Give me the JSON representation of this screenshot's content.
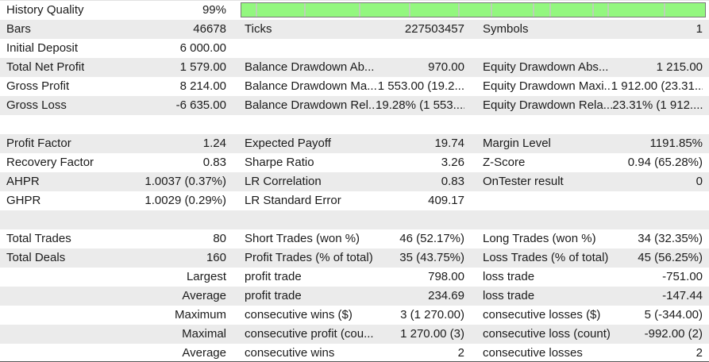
{
  "app": "MetaTrader Strategy Tester Backtest Results",
  "colors": {
    "row_base": "#ffffff",
    "row_alt": "#ebebeb",
    "text": "#1b1b1b",
    "bar_fill": "#93f77f",
    "bar_border": "#787878",
    "bar_divider": "#bcd3b6"
  },
  "progress_bar": {
    "label": "history-quality-progress",
    "fill_percent": 100,
    "segments_percent": [
      3.1,
      13.6,
      25.4,
      36.1,
      46.8,
      53.7,
      62.9,
      66.4,
      75.6,
      79.0,
      91.1
    ]
  },
  "rows": [
    {
      "bar": true,
      "cells": [
        {
          "l": "History Quality",
          "v": "99%"
        },
        {
          "l": "",
          "v": ""
        },
        {
          "l": "",
          "v": ""
        }
      ]
    },
    {
      "cells": [
        {
          "l": "Bars",
          "v": "46678"
        },
        {
          "l": "Ticks",
          "v": "227503457"
        },
        {
          "l": "Symbols",
          "v": "1"
        }
      ]
    },
    {
      "cells": [
        {
          "l": "Initial Deposit",
          "v": "6 000.00"
        },
        {
          "l": "",
          "v": ""
        },
        {
          "l": "",
          "v": ""
        }
      ]
    },
    {
      "cells": [
        {
          "l": "Total Net Profit",
          "v": "1 579.00"
        },
        {
          "l": "Balance Drawdown Ab...",
          "v": "970.00"
        },
        {
          "l": "Equity Drawdown Abs...",
          "v": "1 215.00"
        }
      ]
    },
    {
      "cells": [
        {
          "l": "Gross Profit",
          "v": "8 214.00"
        },
        {
          "l": "Balance Drawdown Ma...",
          "v": "1 553.00 (19.2..."
        },
        {
          "l": "Equity Drawdown Maxi...",
          "v": "1 912.00 (23.31..."
        }
      ]
    },
    {
      "cells": [
        {
          "l": "Gross Loss",
          "v": "-6 635.00"
        },
        {
          "l": "Balance Drawdown Rel...",
          "v": "19.28% (1 553...."
        },
        {
          "l": "Equity Drawdown Rela...",
          "v": "23.31% (1 912...."
        }
      ]
    },
    {
      "cells": [
        {
          "l": "",
          "v": ""
        },
        {
          "l": "",
          "v": ""
        },
        {
          "l": "",
          "v": ""
        }
      ]
    },
    {
      "cells": [
        {
          "l": "Profit Factor",
          "v": "1.24"
        },
        {
          "l": "Expected Payoff",
          "v": "19.74"
        },
        {
          "l": "Margin Level",
          "v": "1191.85%"
        }
      ]
    },
    {
      "cells": [
        {
          "l": "Recovery Factor",
          "v": "0.83"
        },
        {
          "l": "Sharpe Ratio",
          "v": "3.26"
        },
        {
          "l": "Z-Score",
          "v": "0.94 (65.28%)"
        }
      ]
    },
    {
      "cells": [
        {
          "l": "AHPR",
          "v": "1.0037 (0.37%)"
        },
        {
          "l": "LR Correlation",
          "v": "0.83"
        },
        {
          "l": "OnTester result",
          "v": "0"
        }
      ]
    },
    {
      "cells": [
        {
          "l": "GHPR",
          "v": "1.0029 (0.29%)"
        },
        {
          "l": "LR Standard Error",
          "v": "409.17"
        },
        {
          "l": "",
          "v": ""
        }
      ]
    },
    {
      "cells": [
        {
          "l": "",
          "v": ""
        },
        {
          "l": "",
          "v": ""
        },
        {
          "l": "",
          "v": ""
        }
      ]
    },
    {
      "cells": [
        {
          "l": "Total Trades",
          "v": "80"
        },
        {
          "l": "Short Trades (won %)",
          "v": "46 (52.17%)"
        },
        {
          "l": "Long Trades (won %)",
          "v": "34 (32.35%)"
        }
      ]
    },
    {
      "cells": [
        {
          "l": "Total Deals",
          "v": "160"
        },
        {
          "l": "Profit Trades (% of total)",
          "v": "35 (43.75%)"
        },
        {
          "l": "Loss Trades (% of total)",
          "v": "45 (56.25%)"
        }
      ]
    },
    {
      "cells": [
        {
          "l": "",
          "v": "Largest"
        },
        {
          "l": "profit trade",
          "v": "798.00"
        },
        {
          "l": "loss trade",
          "v": "-751.00"
        }
      ]
    },
    {
      "cells": [
        {
          "l": "",
          "v": "Average"
        },
        {
          "l": "profit trade",
          "v": "234.69"
        },
        {
          "l": "loss trade",
          "v": "-147.44"
        }
      ]
    },
    {
      "cells": [
        {
          "l": "",
          "v": "Maximum"
        },
        {
          "l": "consecutive wins ($)",
          "v": "3 (1 270.00)"
        },
        {
          "l": "consecutive losses ($)",
          "v": "5 (-344.00)"
        }
      ]
    },
    {
      "cells": [
        {
          "l": "",
          "v": "Maximal"
        },
        {
          "l": "consecutive profit (cou...",
          "v": "1 270.00 (3)"
        },
        {
          "l": "consecutive loss (count)",
          "v": "-992.00 (2)"
        }
      ]
    },
    {
      "cells": [
        {
          "l": "",
          "v": "Average"
        },
        {
          "l": "consecutive wins",
          "v": "2"
        },
        {
          "l": "consecutive losses",
          "v": "2"
        }
      ]
    }
  ]
}
